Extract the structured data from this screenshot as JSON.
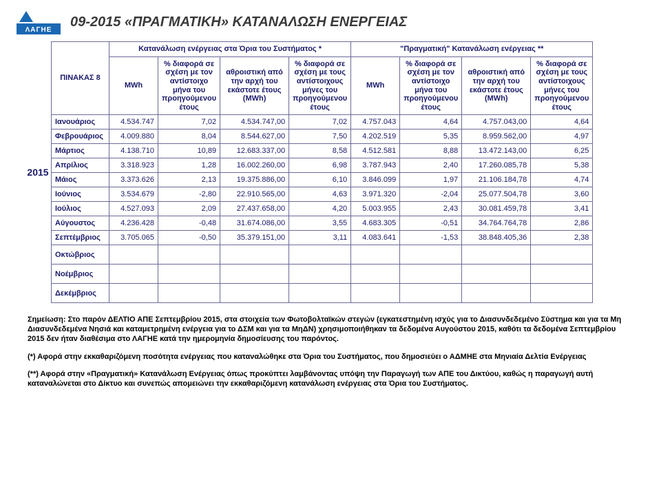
{
  "title": "09-2015 «ΠΡΑΓΜΑΤΙΚΗ» ΚΑΤΑΝΑΛΩΣΗ ΕΝΕΡΓΕΙΑΣ",
  "logo_text": "ΛΑΓΗΕ",
  "table_label": "ΠΙΝΑΚΑΣ 8",
  "year_label": "2015",
  "header": {
    "group_a": "Κατανάλωση ενέργειας στα Όρια του Συστήματος *",
    "group_b": "\"Πραγματική\" Κατανάλωση ενέργειας **",
    "mwh": "MWh",
    "pct_prev_year_month": "% διαφορά σε σχέση με τον αντίστοιχο μήνα του προηγούμενου έτους",
    "cumulative": "αθροιστική από την αρχή του εκάστοτε έτους (MWh)",
    "pct_prev_year_months": "% διαφορά σε σχέση με τους αντίστοιχους μήνες του προηγούμενου έτους"
  },
  "rows": [
    {
      "m": "Ιανουάριος",
      "a1": "4.534.747",
      "a2": "7,02",
      "a3": "4.534.747,00",
      "a4": "7,02",
      "b1": "4.757.043",
      "b2": "4,64",
      "b3": "4.757.043,00",
      "b4": "4,64"
    },
    {
      "m": "Φεβρουάριος",
      "a1": "4.009.880",
      "a2": "8,04",
      "a3": "8.544.627,00",
      "a4": "7,50",
      "b1": "4.202.519",
      "b2": "5,35",
      "b3": "8.959.562,00",
      "b4": "4,97"
    },
    {
      "m": "Μάρτιος",
      "a1": "4.138.710",
      "a2": "10,89",
      "a3": "12.683.337,00",
      "a4": "8,58",
      "b1": "4.512.581",
      "b2": "8,88",
      "b3": "13.472.143,00",
      "b4": "6,25"
    },
    {
      "m": "Απρίλιος",
      "a1": "3.318.923",
      "a2": "1,28",
      "a3": "16.002.260,00",
      "a4": "6,98",
      "b1": "3.787.943",
      "b2": "2,40",
      "b3": "17.260.085,78",
      "b4": "5,38"
    },
    {
      "m": "Μάιος",
      "a1": "3.373.626",
      "a2": "2,13",
      "a3": "19.375.886,00",
      "a4": "6,10",
      "b1": "3.846.099",
      "b2": "1,97",
      "b3": "21.106.184,78",
      "b4": "4,74"
    },
    {
      "m": "Ιούνιος",
      "a1": "3.534.679",
      "a2": "-2,80",
      "a3": "22.910.565,00",
      "a4": "4,63",
      "b1": "3.971.320",
      "b2": "-2,04",
      "b3": "25.077.504,78",
      "b4": "3,60"
    },
    {
      "m": "Ιούλιος",
      "a1": "4.527.093",
      "a2": "2,09",
      "a3": "27.437.658,00",
      "a4": "4,20",
      "b1": "5.003.955",
      "b2": "2,43",
      "b3": "30.081.459,78",
      "b4": "3,41"
    },
    {
      "m": "Αύγουστος",
      "a1": "4.236.428",
      "a2": "-0,48",
      "a3": "31.674.086,00",
      "a4": "3,55",
      "b1": "4.683.305",
      "b2": "-0,51",
      "b3": "34.764.764,78",
      "b4": "2,86"
    },
    {
      "m": "Σεπτέμβριος",
      "a1": "3.705.065",
      "a2": "-0,50",
      "a3": "35.379.151,00",
      "a4": "3,11",
      "b1": "4.083.641",
      "b2": "-1,53",
      "b3": "38.848.405,36",
      "b4": "2,38"
    },
    {
      "m": "Οκτώβριος",
      "a1": "",
      "a2": "",
      "a3": "",
      "a4": "",
      "b1": "",
      "b2": "",
      "b3": "",
      "b4": ""
    },
    {
      "m": "Νοέμβριος",
      "a1": "",
      "a2": "",
      "a3": "",
      "a4": "",
      "b1": "",
      "b2": "",
      "b3": "",
      "b4": ""
    },
    {
      "m": "Δεκέμβριος",
      "a1": "",
      "a2": "",
      "a3": "",
      "a4": "",
      "b1": "",
      "b2": "",
      "b3": "",
      "b4": ""
    }
  ],
  "notes": {
    "note1": "Σημείωση: Στο παρόν ΔΕΛΤΙΟ ΑΠΕ Σεπτεμβρίου 2015, στα στοιχεία των Φωτοβολταϊκών στεγών (εγκατεστημένη ισχύς για το Διασυνδεδεμένο Σύστημα και για τα Μη Διασυνδεδεμένα Νησιά και καταμετρημένη ενέργεια για το ΔΣΜ και για τα ΜηΔΝ) χρησιμοποιήθηκαν τα δεδομένα Αυγούστου 2015, καθότι τα δεδομένα Σεπτεμβρίου 2015 δεν ήταν διαθέσιμα στο ΛΑΓΗΕ κατά την ημερομηνία δημοσίευσης του παρόντος.",
    "note2": "(*) Αφορά στην εκκαθαριζόμενη ποσότητα ενέργειας που καταναλώθηκε στα Όρια του Συστήματος, που δημοσιεύει ο ΑΔΜΗΕ στα Μηνιαία Δελτία Ενέργειας",
    "note3": "(**) Αφορά στην «Πραγματική» Κατανάλωση Ενέργειας όπως προκύπτει λαμβάνοντας υπόψη την Παραγωγή των ΑΠΕ του Δικτύου, καθώς η παραγωγή αυτή καταναλώνεται στο Δίκτυο και συνεπώς απομειώνει την εκκαθαριζόμενη κατανάλωση ενέργειας στα Όρια του Συστήματος."
  }
}
